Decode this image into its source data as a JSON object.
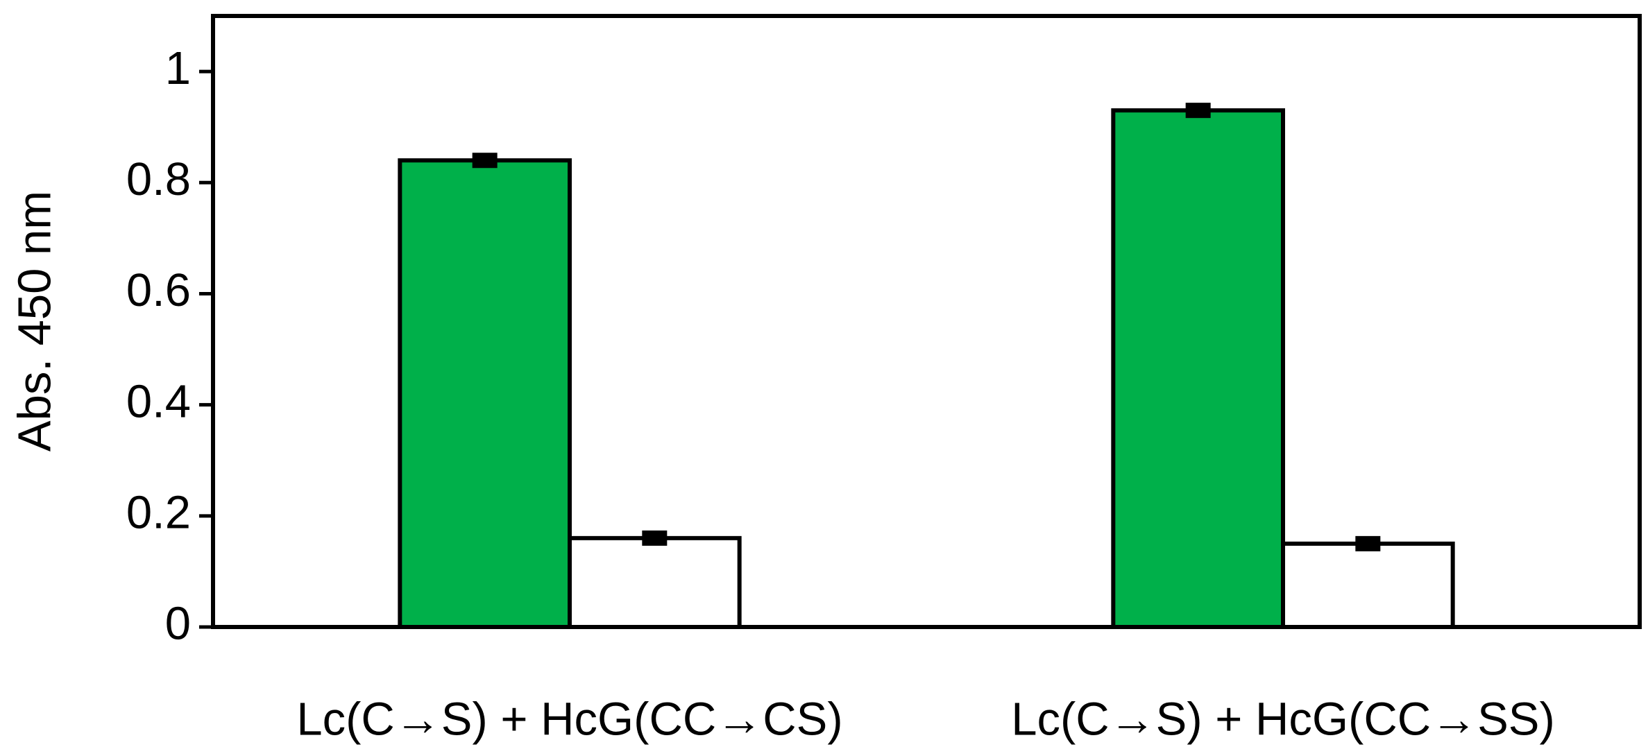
{
  "chart_data": {
    "type": "bar",
    "y_label": "Abs. 450 nm",
    "categories": [
      "Lc(C→S) + HcG(CC→CS)",
      "Lc(C→S) + HcG(CC→SS)"
    ],
    "series": [
      {
        "color": "#00b04a",
        "values": [
          0.84,
          0.93
        ],
        "errors": [
          0.006,
          0.005
        ]
      },
      {
        "color": "#ffffff",
        "values": [
          0.16,
          0.15
        ],
        "errors": [
          0.006,
          0.006
        ]
      }
    ],
    "ylim": [
      0,
      1.1
    ],
    "yticks": [
      0,
      0.2,
      0.4,
      0.6,
      0.8,
      1
    ]
  }
}
